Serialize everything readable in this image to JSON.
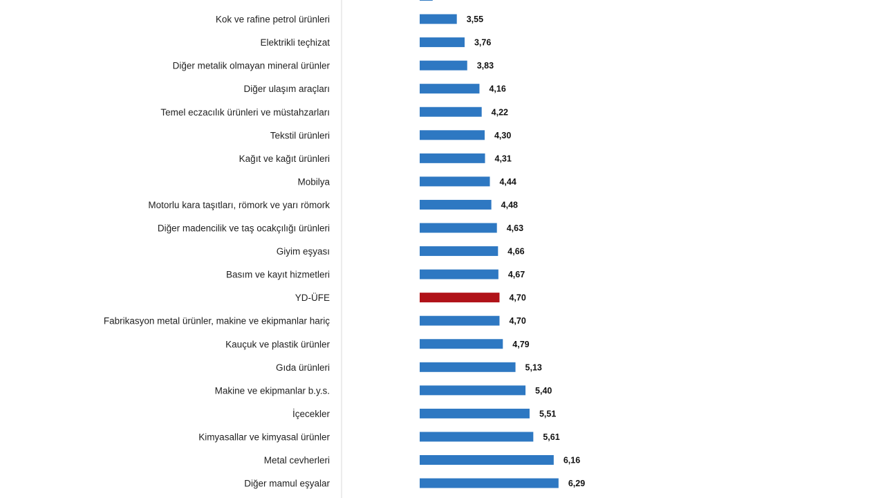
{
  "chart_data": {
    "type": "bar",
    "orientation": "horizontal",
    "categories": [
      "",
      "Kok ve rafine petrol ürünleri",
      "Elektrikli teçhizat",
      "Diğer metalik olmayan mineral ürünler",
      "Diğer ulaşım araçları",
      "Temel eczacılık ürünleri ve müstahzarları",
      "Tekstil ürünleri",
      "Kağıt ve kağıt ürünleri",
      "Mobilya",
      "Motorlu kara taşıtları, römork ve yarı römork",
      "Diğer madencilik ve taş ocakçılığı ürünleri",
      "Giyim eşyası",
      "Basım ve kayıt hizmetleri",
      "YD-ÜFE",
      "Fabrikasyon metal ürünler, makine ve ekipmanlar hariç",
      "Kauçuk ve plastik ürünler",
      "Gıda ürünleri",
      "Makine ve ekipmanlar b.y.s.",
      "İçecekler",
      "Kimyasallar ve kimyasal ürünler",
      "Metal cevherleri",
      "Diğer mamul eşyalar"
    ],
    "values": [
      2.9,
      3.55,
      3.76,
      3.83,
      4.16,
      4.22,
      4.3,
      4.31,
      4.44,
      4.48,
      4.63,
      4.66,
      4.67,
      4.7,
      4.7,
      4.79,
      5.13,
      5.4,
      5.51,
      5.61,
      6.16,
      6.29
    ],
    "value_labels": [
      "",
      "3,55",
      "3,76",
      "3,83",
      "4,16",
      "4,22",
      "4,30",
      "4,31",
      "4,44",
      "4,48",
      "4,63",
      "4,66",
      "4,67",
      "4,70",
      "4,70",
      "4,79",
      "5,13",
      "5,40",
      "5,51",
      "5,61",
      "6,16",
      "6,29"
    ],
    "highlight_category": "YD-ÜFE",
    "colors": {
      "bar": "#2e78c2",
      "highlight": "#b01218",
      "axis": "#d9d9d9"
    },
    "xlim": [
      0,
      6.5
    ],
    "grid": false,
    "legend": "none",
    "title": "",
    "xlabel": "",
    "ylabel": ""
  }
}
